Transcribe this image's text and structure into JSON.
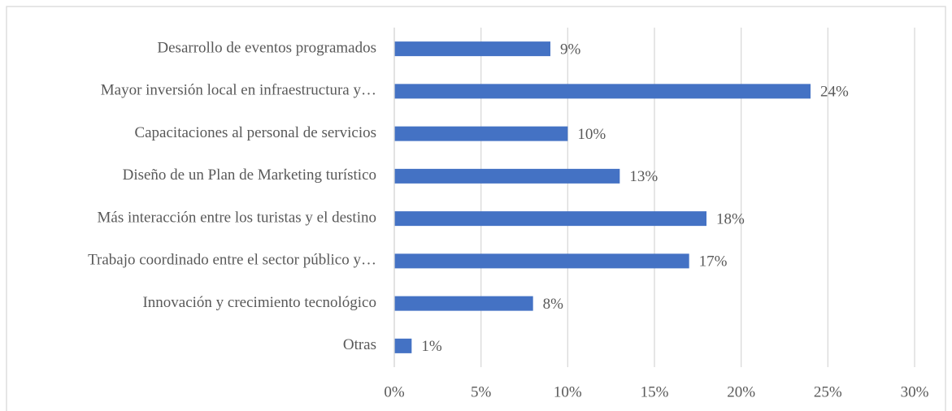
{
  "chart_data": {
    "type": "bar",
    "orientation": "horizontal",
    "categories": [
      "Desarrollo de eventos programados",
      "Mayor inversión local en infraestructura y…",
      "Capacitaciones al personal de servicios",
      "Diseño de un Plan de Marketing turístico",
      "Más interacción entre los turistas y el destino",
      "Trabajo coordinado entre el sector público y…",
      "Innovación y crecimiento tecnológico",
      "Otras"
    ],
    "values": [
      9,
      24,
      10,
      13,
      18,
      17,
      8,
      1
    ],
    "value_labels": [
      "9%",
      "24%",
      "10%",
      "13%",
      "18%",
      "17%",
      "8%",
      "1%"
    ],
    "color": "#4472c4",
    "xlim": [
      0,
      30
    ],
    "xticks": [
      {
        "value": 0,
        "label": "0%"
      },
      {
        "value": 5,
        "label": "5%"
      },
      {
        "value": 10,
        "label": "10%"
      },
      {
        "value": 15,
        "label": "15%"
      },
      {
        "value": 20,
        "label": "20%"
      },
      {
        "value": 25,
        "label": "25%"
      },
      {
        "value": 30,
        "label": "30%"
      }
    ],
    "grid": true
  }
}
